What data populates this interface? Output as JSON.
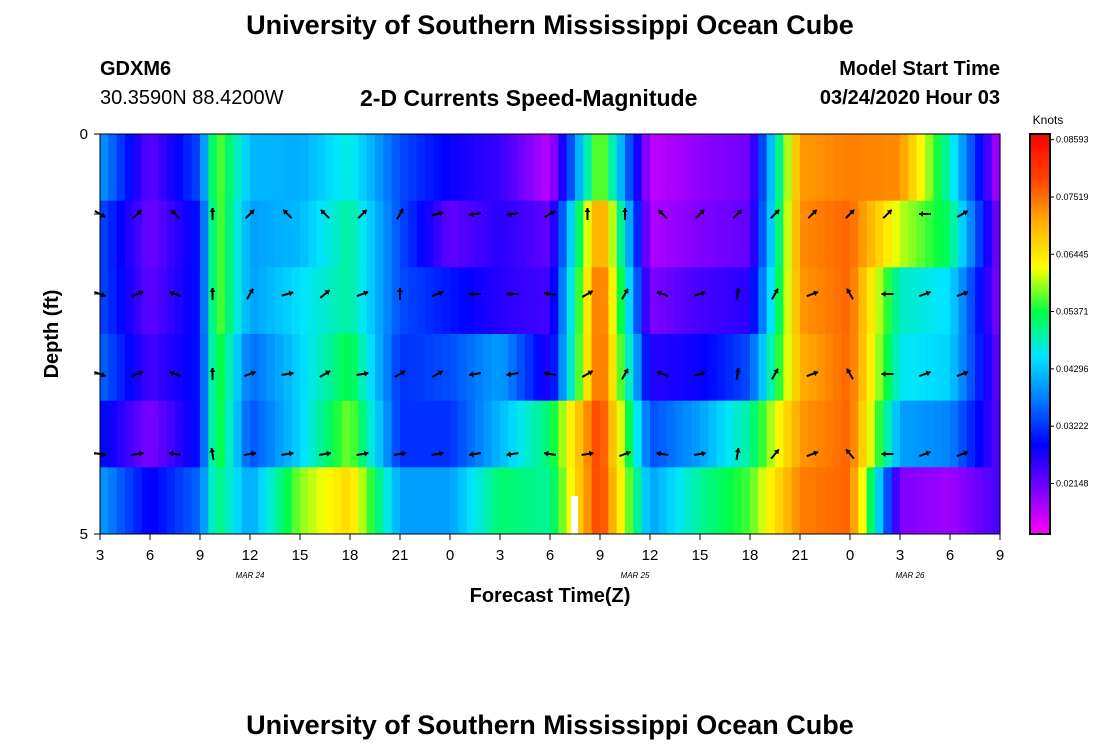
{
  "header": {
    "title": "University of Southern Mississippi Ocean Cube",
    "station_id": "GDXM6",
    "coords": "30.3590N 88.4200W",
    "subtitle": "2-D Currents Speed-Magnitude",
    "model_start_label": "Model Start Time",
    "model_start_value": "03/24/2020 Hour 03"
  },
  "footer": {
    "title": "University of Southern Mississippi Ocean Cube"
  },
  "chart_data": {
    "type": "heatmap",
    "title": "2-D Currents Speed-Magnitude",
    "xlabel": "Forecast Time(Z)",
    "ylabel": "Depth (ft)",
    "colorbar_label": "Knots",
    "x_tick_labels": [
      "3",
      "6",
      "9",
      "12",
      "15",
      "18",
      "21",
      "0",
      "3",
      "6",
      "9",
      "12",
      "15",
      "18",
      "21",
      "0",
      "3",
      "6",
      "9"
    ],
    "date_labels": [
      {
        "label": "MAR 24",
        "tick_index": 3
      },
      {
        "label": "MAR 25",
        "tick_index": 10.7
      },
      {
        "label": "MAR 26",
        "tick_index": 16.2
      }
    ],
    "y_tick_labels": [
      "0",
      "",
      "",
      "",
      "",
      "5"
    ],
    "ylim": [
      0,
      5
    ],
    "colorbar_ticks": [
      "0.08593",
      "0.07519",
      "0.06445",
      "0.05371",
      "0.04296",
      "0.03222",
      "0.02148"
    ],
    "colorbar_tick_values": [
      0.08593,
      0.07519,
      0.06445,
      0.05371,
      0.04296,
      0.03222,
      0.02148
    ],
    "color_range": [
      0.012,
      0.087
    ],
    "color_stops": [
      "#ff00ff",
      "#7a00ff",
      "#0000ff",
      "#0078ff",
      "#00e5ff",
      "#00ff44",
      "#ffff00",
      "#ffb000",
      "#ff4000",
      "#ff0000"
    ],
    "anchor_hours": [
      0,
      3,
      6,
      7,
      9,
      12,
      15,
      18,
      21,
      24,
      27,
      30,
      33,
      36,
      39,
      42,
      45,
      48,
      51,
      54
    ],
    "row_speeds": [
      [
        0.04,
        0.022,
        0.034,
        0.058,
        0.042,
        0.041,
        0.047,
        0.034,
        0.028,
        0.025,
        0.016,
        0.06,
        0.016,
        0.019,
        0.021,
        0.072,
        0.074,
        0.073,
        0.048,
        0.016
      ],
      [
        0.034,
        0.021,
        0.03,
        0.058,
        0.04,
        0.042,
        0.05,
        0.034,
        0.022,
        0.026,
        0.022,
        0.074,
        0.017,
        0.02,
        0.022,
        0.073,
        0.076,
        0.06,
        0.052,
        0.019
      ],
      [
        0.034,
        0.022,
        0.03,
        0.058,
        0.04,
        0.045,
        0.05,
        0.034,
        0.03,
        0.026,
        0.024,
        0.078,
        0.02,
        0.024,
        0.026,
        0.072,
        0.076,
        0.048,
        0.045,
        0.019
      ],
      [
        0.036,
        0.024,
        0.03,
        0.056,
        0.036,
        0.044,
        0.054,
        0.032,
        0.034,
        0.04,
        0.026,
        0.078,
        0.026,
        0.028,
        0.034,
        0.07,
        0.076,
        0.046,
        0.044,
        0.021
      ],
      [
        0.03,
        0.02,
        0.03,
        0.056,
        0.034,
        0.044,
        0.058,
        0.032,
        0.032,
        0.042,
        0.052,
        0.08,
        0.034,
        0.04,
        0.05,
        0.072,
        0.076,
        0.04,
        0.038,
        0.022
      ],
      [
        0.04,
        0.028,
        0.036,
        0.052,
        0.04,
        0.058,
        0.066,
        0.04,
        0.04,
        0.052,
        0.05,
        0.08,
        0.04,
        0.05,
        0.056,
        0.074,
        0.076,
        0.02,
        0.018,
        0.024
      ]
    ],
    "arrow_rows": [
      1,
      2,
      3,
      4
    ],
    "arrow_hours": [
      0,
      2.25,
      4.5,
      6.75,
      9,
      11.25,
      13.5,
      15.75,
      18,
      20.25,
      22.5,
      24.75,
      27,
      29.25,
      31.5,
      33.75,
      36,
      38.25,
      40.5,
      42.75,
      45,
      47.25,
      49.5,
      51.75
    ],
    "arrow_angles": [
      [
        30,
        -45,
        -135,
        -90,
        -45,
        -135,
        -135,
        -45,
        -60,
        -15,
        170,
        170,
        -30,
        -90,
        -90,
        -135,
        -45,
        -45,
        -45,
        -45,
        -45,
        -45,
        -180,
        -30
      ],
      [
        20,
        -20,
        -160,
        -90,
        -60,
        -15,
        -40,
        -20,
        -90,
        -20,
        180,
        180,
        -170,
        -30,
        -60,
        -160,
        -15,
        -80,
        -60,
        -20,
        -120,
        180,
        -20,
        -20
      ],
      [
        20,
        -20,
        -160,
        -90,
        -20,
        -10,
        -30,
        -10,
        -30,
        -30,
        170,
        170,
        -170,
        -30,
        -60,
        -160,
        -15,
        -80,
        -60,
        -20,
        -120,
        180,
        -20,
        -20
      ],
      [
        10,
        -10,
        -170,
        -100,
        -10,
        -10,
        -10,
        -10,
        -10,
        -10,
        170,
        170,
        -170,
        -10,
        -20,
        -170,
        -10,
        -80,
        -50,
        -20,
        -130,
        180,
        -20,
        -20
      ]
    ]
  }
}
